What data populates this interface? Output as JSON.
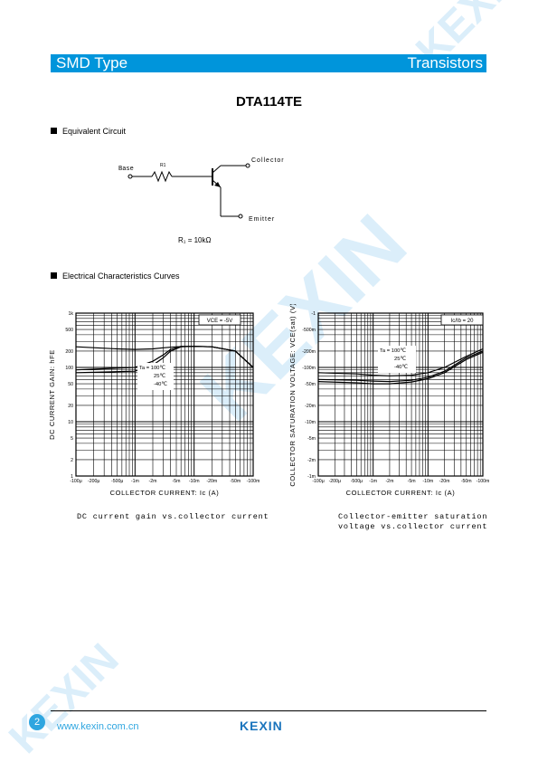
{
  "header": {
    "left": "SMD Type",
    "right": "Transistors"
  },
  "title": "DTA114TE",
  "sections": {
    "equivalent": "Equivalent Circuit",
    "curves": "Electrical Characteristics Curves"
  },
  "circuit": {
    "base": "Base",
    "r1": "R1",
    "collector": "Collector",
    "emitter": "Emitter",
    "resistance": "R₁ = 10kΩ"
  },
  "chart_data": [
    {
      "type": "line",
      "title": "DC current gain vs. collector current",
      "xlabel": "COLLECTOR CURRENT: Ic (A)",
      "ylabel": "DC CURRENT GAIN: hFE",
      "x_scale": "log",
      "y_scale": "log",
      "x_ticks": [
        "-100μ",
        "-200μ",
        "-500μ",
        "-1m",
        "-2m",
        "-5m",
        "-10m",
        "-20m",
        "-50m",
        "-100m"
      ],
      "y_ticks": [
        "1",
        "2",
        "5",
        "10",
        "20",
        "50",
        "100",
        "200",
        "500",
        "1k"
      ],
      "condition": "VCE = -5V",
      "series_labels": [
        "Ta = 100℃",
        "25℃",
        "-40℃"
      ],
      "series": [
        {
          "name": "Ta = 100℃",
          "x": [
            -0.0001,
            -0.0005,
            -0.001,
            -0.002,
            -0.003,
            -0.005,
            -0.01,
            -0.02,
            -0.05,
            -0.1
          ],
          "y": [
            240,
            220,
            215,
            220,
            230,
            240,
            245,
            240,
            200,
            100
          ]
        },
        {
          "name": "25℃",
          "x": [
            -0.0001,
            -0.001,
            -0.002,
            -0.003,
            -0.004,
            -0.006,
            -0.01,
            -0.02,
            -0.05,
            -0.1
          ],
          "y": [
            90,
            100,
            130,
            170,
            215,
            245,
            245,
            240,
            200,
            100
          ]
        },
        {
          "name": "-40℃",
          "x": [
            -0.0001,
            -0.001,
            -0.002,
            -0.003,
            -0.004,
            -0.006,
            -0.01,
            -0.02,
            -0.05,
            -0.1
          ],
          "y": [
            80,
            85,
            110,
            150,
            200,
            240,
            245,
            240,
            200,
            100
          ]
        }
      ]
    },
    {
      "type": "line",
      "title": "Collector-emitter saturation voltage vs. collector current",
      "xlabel": "COLLECTOR CURRENT: Ic (A)",
      "ylabel": "COLLECTOR SATURATION VOLTAGE: VCE(sat) (V)",
      "x_scale": "log",
      "y_scale": "log",
      "x_ticks": [
        "-100μ",
        "-200μ",
        "-500μ",
        "-1m",
        "-2m",
        "-5m",
        "-10m",
        "-20m",
        "-50m",
        "-100m"
      ],
      "y_ticks": [
        "-1",
        "-500m",
        "-200m",
        "-100m",
        "-50m",
        "-20m",
        "-10m",
        "-5m",
        "-2m",
        "-1m"
      ],
      "condition": "Ic/Ib = 20",
      "series_labels": [
        "Ta = 100℃",
        "25℃",
        "-40℃"
      ],
      "series": [
        {
          "name": "Ta = 100℃",
          "x": [
            -0.0001,
            -0.0005,
            -0.001,
            -0.002,
            -0.005,
            -0.01,
            -0.02,
            -0.05,
            -0.1
          ],
          "y": [
            -0.08,
            -0.076,
            -0.072,
            -0.07,
            -0.072,
            -0.08,
            -0.1,
            -0.16,
            -0.22
          ]
        },
        {
          "name": "25℃",
          "x": [
            -0.0001,
            -0.0005,
            -0.001,
            -0.002,
            -0.005,
            -0.01,
            -0.02,
            -0.05,
            -0.1
          ],
          "y": [
            -0.06,
            -0.058,
            -0.056,
            -0.055,
            -0.058,
            -0.066,
            -0.085,
            -0.15,
            -0.2
          ]
        },
        {
          "name": "-40℃",
          "x": [
            -0.0001,
            -0.0005,
            -0.001,
            -0.002,
            -0.005,
            -0.01,
            -0.02,
            -0.05,
            -0.1
          ],
          "y": [
            -0.055,
            -0.052,
            -0.05,
            -0.05,
            -0.054,
            -0.062,
            -0.08,
            -0.14,
            -0.19
          ]
        }
      ]
    }
  ],
  "captions": [
    "DC current gain vs.collector current",
    "Collector-emitter saturation",
    "voltage vs.collector current"
  ],
  "footer": {
    "page": "2",
    "url": "www.kexin.com.cn",
    "logo": "KEXIN"
  },
  "colors": {
    "brand": "#0095db",
    "watermark": "#d6ecf8"
  }
}
